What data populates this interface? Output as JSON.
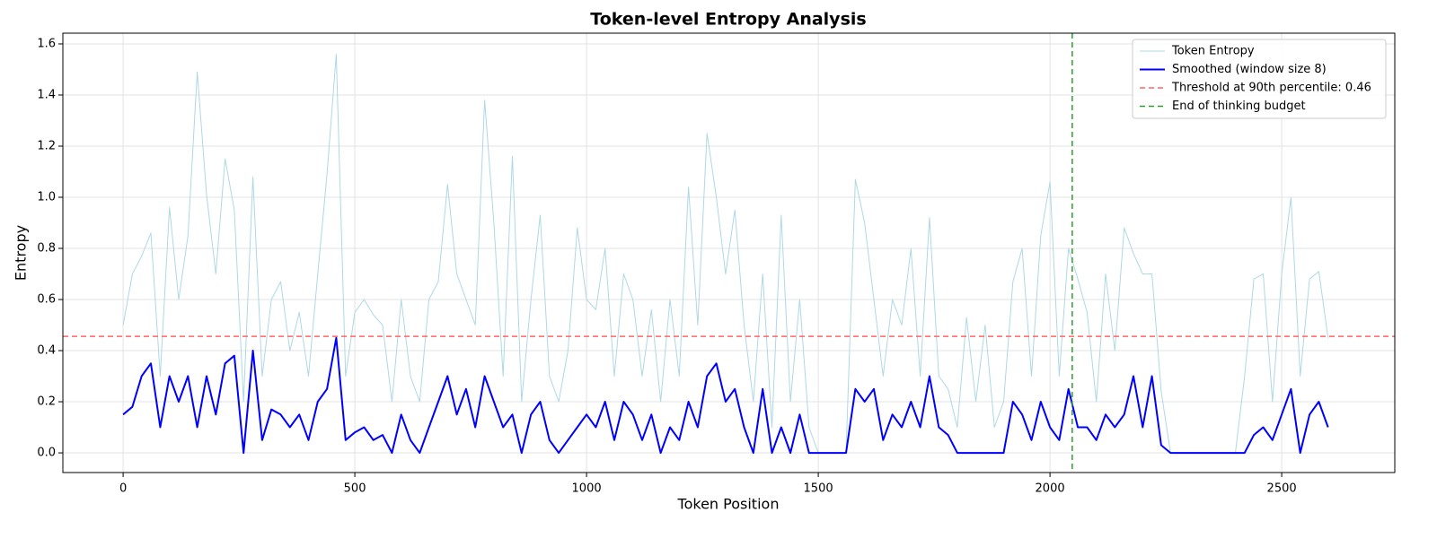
{
  "chart_data": {
    "type": "line",
    "title": "Token-level Entropy Analysis",
    "x_label": "Token Position",
    "y_label": "Entropy",
    "x": [
      0,
      20,
      40,
      60,
      80,
      100,
      120,
      140,
      160,
      180,
      200,
      220,
      240,
      260,
      280,
      300,
      320,
      340,
      360,
      380,
      400,
      420,
      440,
      460,
      480,
      500,
      520,
      540,
      560,
      580,
      600,
      620,
      640,
      660,
      680,
      700,
      720,
      740,
      760,
      780,
      800,
      820,
      840,
      860,
      880,
      900,
      920,
      940,
      960,
      980,
      1000,
      1020,
      1040,
      1060,
      1080,
      1100,
      1120,
      1140,
      1160,
      1180,
      1200,
      1220,
      1240,
      1260,
      1280,
      1300,
      1320,
      1340,
      1360,
      1380,
      1400,
      1420,
      1440,
      1460,
      1480,
      1500,
      1520,
      1540,
      1560,
      1580,
      1600,
      1620,
      1640,
      1660,
      1680,
      1700,
      1720,
      1740,
      1760,
      1780,
      1800,
      1820,
      1840,
      1860,
      1880,
      1900,
      1920,
      1940,
      1960,
      1980,
      2000,
      2020,
      2040,
      2060,
      2080,
      2100,
      2120,
      2140,
      2160,
      2180,
      2200,
      2220,
      2240,
      2260,
      2280,
      2300,
      2320,
      2340,
      2360,
      2380,
      2400,
      2420,
      2440,
      2460,
      2480,
      2500,
      2520,
      2540,
      2560,
      2580,
      2600
    ],
    "series": [
      {
        "name": "Token Entropy",
        "color": "#add8e6",
        "width": 1,
        "values": [
          0.5,
          0.7,
          0.77,
          0.86,
          0.3,
          0.96,
          0.6,
          0.85,
          1.49,
          1.01,
          0.7,
          1.15,
          0.95,
          0.2,
          1.08,
          0.3,
          0.6,
          0.67,
          0.4,
          0.55,
          0.3,
          0.7,
          1.09,
          1.56,
          0.3,
          0.55,
          0.6,
          0.54,
          0.5,
          0.2,
          0.6,
          0.3,
          0.2,
          0.6,
          0.67,
          1.05,
          0.7,
          0.6,
          0.5,
          1.38,
          0.9,
          0.3,
          1.16,
          0.2,
          0.6,
          0.93,
          0.3,
          0.2,
          0.4,
          0.88,
          0.6,
          0.56,
          0.8,
          0.3,
          0.7,
          0.6,
          0.3,
          0.56,
          0.2,
          0.6,
          0.3,
          1.04,
          0.5,
          1.25,
          1.0,
          0.7,
          0.95,
          0.5,
          0.2,
          0.7,
          0.1,
          0.93,
          0.2,
          0.6,
          0.1,
          0,
          0,
          0,
          0,
          1.07,
          0.9,
          0.6,
          0.3,
          0.6,
          0.5,
          0.8,
          0.3,
          0.92,
          0.3,
          0.25,
          0.1,
          0.53,
          0.2,
          0.5,
          0.1,
          0.2,
          0.67,
          0.8,
          0.3,
          0.85,
          1.06,
          0.3,
          0.8,
          0.68,
          0.55,
          0.2,
          0.7,
          0.4,
          0.88,
          0.78,
          0.7,
          0.7,
          0.24,
          0,
          0,
          0,
          0,
          0,
          0,
          0,
          0,
          0.3,
          0.68,
          0.7,
          0.2,
          0.7,
          1.0,
          0.3,
          0.68,
          0.71,
          0.45
        ]
      },
      {
        "name": "Smoothed (window size 8)",
        "color": "#0000ff",
        "width": 2,
        "values": [
          0.15,
          0.18,
          0.3,
          0.35,
          0.1,
          0.3,
          0.2,
          0.3,
          0.1,
          0.3,
          0.15,
          0.35,
          0.38,
          0,
          0.4,
          0.05,
          0.17,
          0.15,
          0.1,
          0.15,
          0.05,
          0.2,
          0.25,
          0.45,
          0.05,
          0.08,
          0.1,
          0.05,
          0.07,
          0,
          0.15,
          0.05,
          0,
          0.1,
          0.2,
          0.3,
          0.15,
          0.25,
          0.1,
          0.3,
          0.2,
          0.1,
          0.15,
          0,
          0.15,
          0.2,
          0.05,
          0,
          0.05,
          0.1,
          0.15,
          0.1,
          0.2,
          0.05,
          0.2,
          0.15,
          0.05,
          0.15,
          0,
          0.1,
          0.05,
          0.2,
          0.1,
          0.3,
          0.35,
          0.2,
          0.25,
          0.1,
          0,
          0.25,
          0,
          0.1,
          0,
          0.15,
          0,
          0,
          0,
          0,
          0,
          0.25,
          0.2,
          0.25,
          0.05,
          0.15,
          0.1,
          0.2,
          0.1,
          0.3,
          0.1,
          0.07,
          0,
          0,
          0,
          0,
          0,
          0,
          0.2,
          0.15,
          0.05,
          0.2,
          0.1,
          0.05,
          0.25,
          0.1,
          0.1,
          0.05,
          0.15,
          0.1,
          0.15,
          0.3,
          0.1,
          0.3,
          0.03,
          0,
          0,
          0,
          0,
          0,
          0,
          0,
          0,
          0,
          0.07,
          0.1,
          0.05,
          0.15,
          0.25,
          0,
          0.15,
          0.2,
          0.1
        ]
      }
    ],
    "hline": {
      "y": 0.456,
      "label": "Threshold at 90th percentile: 0.46",
      "color": "#ff6666"
    },
    "vline": {
      "x": 2048,
      "label": "End of thinking budget",
      "color": "#2ca02c"
    },
    "xlim": [
      -130,
      2744
    ],
    "ylim": [
      -0.077,
      1.642
    ],
    "xticks": [
      0,
      500,
      1000,
      1500,
      2000,
      2500
    ],
    "yticks": [
      {
        "value": 0,
        "label": "0.0"
      },
      0.2,
      0.4,
      0.6,
      0.8,
      {
        "value": 1,
        "label": "1.0"
      },
      1.2,
      1.4,
      1.6
    ],
    "grid": true,
    "legend": "upper right"
  }
}
